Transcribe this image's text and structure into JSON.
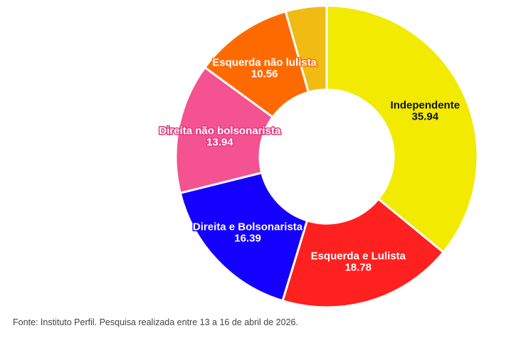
{
  "chart_data": {
    "type": "pie",
    "donut": true,
    "title": "",
    "slices": [
      {
        "label": "Independente",
        "value": 35.94,
        "value_text": "35.94",
        "color": "#f2ea00",
        "text_color": "#111111",
        "halo": "#f2ea00"
      },
      {
        "label": "Esquerda e Lulista",
        "value": 18.78,
        "value_text": "18.78",
        "color": "#ff2020",
        "text_color": "#ffffff",
        "halo": "#ff2020"
      },
      {
        "label": "Direita e Bolsonarista",
        "value": 16.39,
        "value_text": "16.39",
        "color": "#1400ff",
        "text_color": "#ffffff",
        "halo": "#1400ff"
      },
      {
        "label": "Direita não bolsonarista",
        "value": 13.94,
        "value_text": "13.94",
        "color": "#f55291",
        "text_color": "#ffffff",
        "halo": "#e23a7e"
      },
      {
        "label": "Esquerda não lulista",
        "value": 10.56,
        "value_text": "10.56",
        "color": "#ff6a00",
        "text_color": "#ffffff",
        "halo": "#ff6a00"
      },
      {
        "label": "",
        "value": 4.39,
        "value_text": "",
        "color": "#f0bb12",
        "text_color": "#ffffff",
        "halo": "#f0bb12"
      }
    ]
  },
  "source_note": "Fonte: Instituto Perfil. Pesquisa realizada entre 13 a 16 de abril de 2026."
}
